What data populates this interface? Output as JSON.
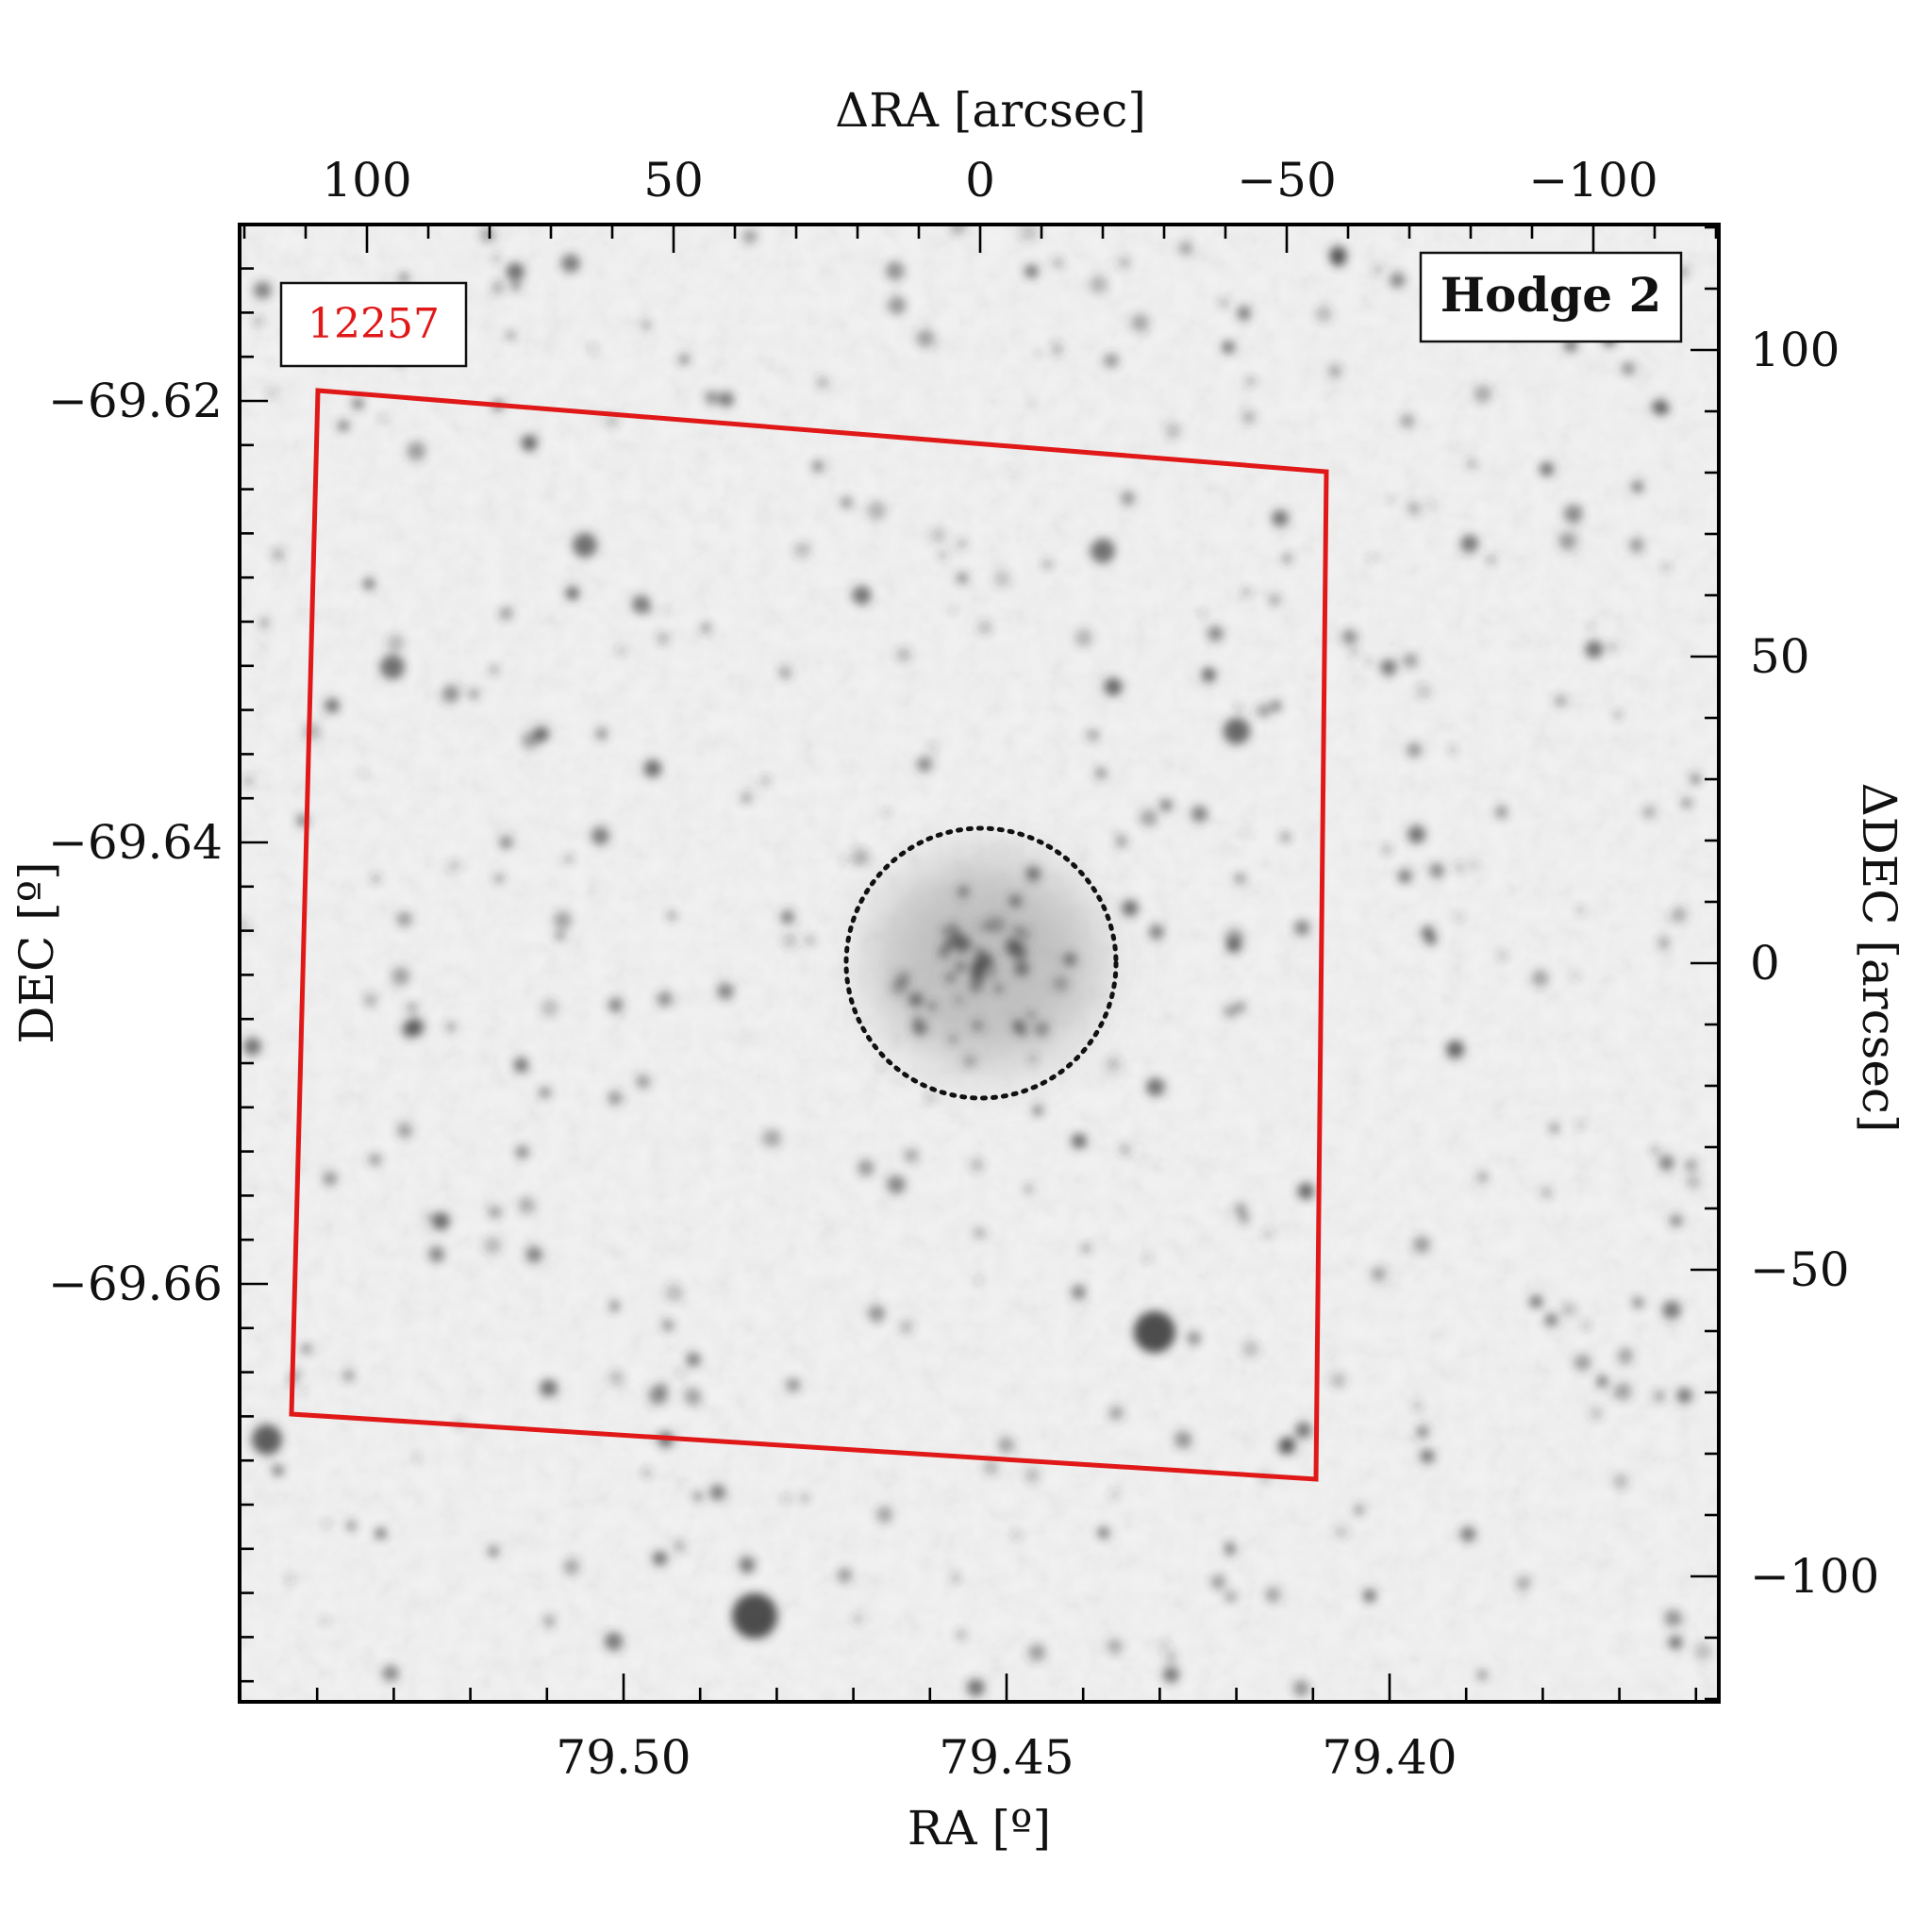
{
  "figure": {
    "top_axis": {
      "title": "ΔRA [arcsec]",
      "ticks": [
        {
          "value": 100,
          "label": "100"
        },
        {
          "value": 50,
          "label": "50"
        },
        {
          "value": 0,
          "label": "0"
        },
        {
          "value": -50,
          "label": "−50"
        },
        {
          "value": -100,
          "label": "−100"
        }
      ]
    },
    "bottom_axis": {
      "title": "RA [º]",
      "ticks": [
        {
          "value": 79.5,
          "label": "79.50"
        },
        {
          "value": 79.45,
          "label": "79.45"
        },
        {
          "value": 79.4,
          "label": "79.40"
        }
      ]
    },
    "left_axis": {
      "title": "DEC [º]",
      "ticks": [
        {
          "value": -69.62,
          "label": "−69.62"
        },
        {
          "value": -69.64,
          "label": "−69.64"
        },
        {
          "value": -69.66,
          "label": "−69.66"
        }
      ]
    },
    "right_axis": {
      "title": "ΔDEC [arcsec]",
      "ticks": [
        {
          "value": 100,
          "label": "100"
        },
        {
          "value": 50,
          "label": "50"
        },
        {
          "value": 0,
          "label": "0"
        },
        {
          "value": -50,
          "label": "−50"
        },
        {
          "value": -100,
          "label": "−100"
        }
      ]
    },
    "field_label": "12257",
    "cluster_label": "Hodge 2",
    "cluster_circle_radius_arcsec": 22,
    "colors": {
      "footprint": "#e01818",
      "field_label_text": "#e01818",
      "sky_background": "#f2f2f2",
      "stars": "#3a3a3a",
      "frame": "#000000"
    }
  }
}
